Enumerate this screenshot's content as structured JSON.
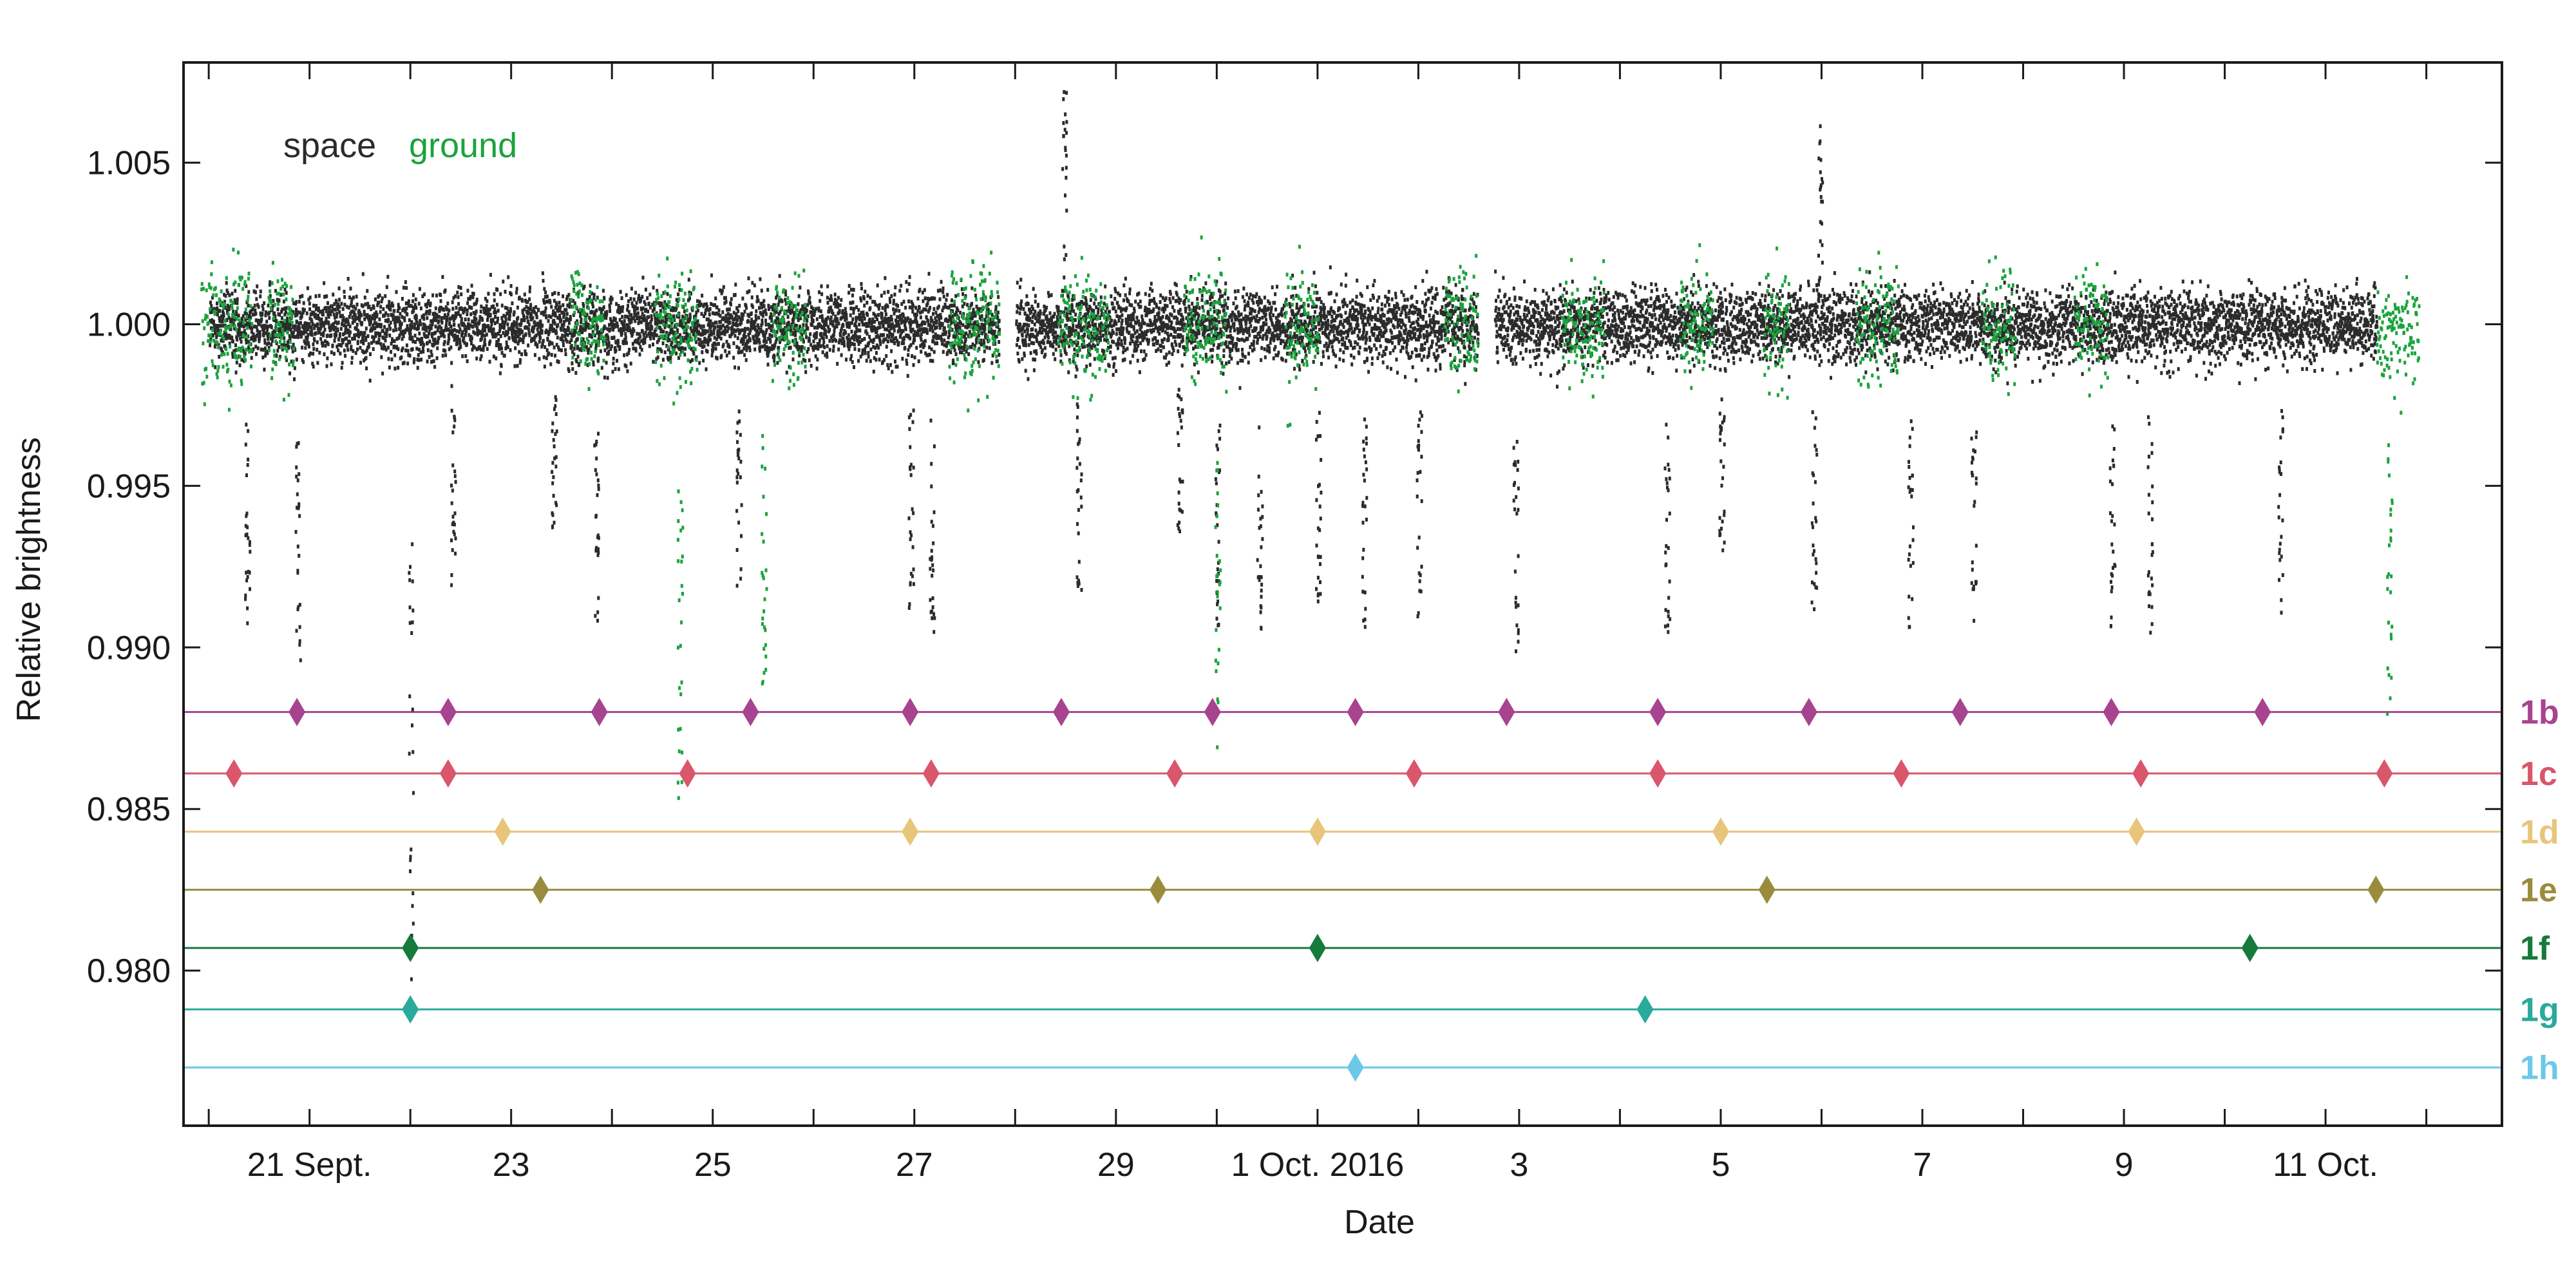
{
  "chart_data": {
    "type": "scatter",
    "xlabel": "Date",
    "ylabel": "Relative brightness",
    "x_unit": "date",
    "xlim": [
      "2016-09-19T18:00",
      "2016-10-12T18:00"
    ],
    "ylim": [
      0.9752,
      1.0081
    ],
    "x_ticks": [
      "2016-09-20",
      "2016-09-21",
      "2016-09-22",
      "2016-09-23",
      "2016-09-24",
      "2016-09-25",
      "2016-09-26",
      "2016-09-27",
      "2016-09-28",
      "2016-09-29",
      "2016-09-30",
      "2016-10-01",
      "2016-10-02",
      "2016-10-03",
      "2016-10-04",
      "2016-10-05",
      "2016-10-06",
      "2016-10-07",
      "2016-10-08",
      "2016-10-09",
      "2016-10-10",
      "2016-10-11",
      "2016-10-12"
    ],
    "x_tick_labels": [
      {
        "date": "2016-09-21",
        "label": "21 Sept."
      },
      {
        "date": "2016-09-23",
        "label": "23"
      },
      {
        "date": "2016-09-25",
        "label": "25"
      },
      {
        "date": "2016-09-27",
        "label": "27"
      },
      {
        "date": "2016-09-29",
        "label": "29"
      },
      {
        "date": "2016-10-01",
        "label": "1 Oct. 2016"
      },
      {
        "date": "2016-10-03",
        "label": "3"
      },
      {
        "date": "2016-10-05",
        "label": "5"
      },
      {
        "date": "2016-10-07",
        "label": "7"
      },
      {
        "date": "2016-10-09",
        "label": "9"
      },
      {
        "date": "2016-10-11",
        "label": "11 Oct."
      }
    ],
    "y_ticks": [
      0.98,
      0.985,
      0.99,
      0.995,
      1.0,
      1.005
    ],
    "y_tick_labels": [
      "0.980",
      "0.985",
      "0.990",
      "0.995",
      "1.000",
      "1.005"
    ],
    "legend": {
      "placement": "top-left"
    },
    "series": [
      {
        "name": "space",
        "color": "#2b2b2b",
        "baseline": 1.0,
        "scatter_sd": 0.0011,
        "segments": [
          [
            "2016-09-20T00:00",
            "2016-09-27T20:00"
          ],
          [
            "2016-09-28T00:00",
            "2016-10-02T14:00"
          ],
          [
            "2016-10-02T18:00",
            "2016-10-11T12:00"
          ]
        ],
        "transit_dips": [
          {
            "date": "2016-09-20T09:00",
            "depth": 0.9925
          },
          {
            "date": "2016-09-20T21:00",
            "depth": 0.9918
          },
          {
            "date": "2016-09-22T00:00",
            "depth": 0.984
          },
          {
            "date": "2016-09-22T10:00",
            "depth": 0.9932
          },
          {
            "date": "2016-09-23T10:00",
            "depth": 0.9948
          },
          {
            "date": "2016-09-23T20:00",
            "depth": 0.9928
          },
          {
            "date": "2016-09-25T06:00",
            "depth": 0.9935
          },
          {
            "date": "2016-09-26T23:00",
            "depth": 0.993
          },
          {
            "date": "2016-09-27T04:00",
            "depth": 0.9925
          },
          {
            "date": "2016-09-28T15:00",
            "depth": 0.9935
          },
          {
            "date": "2016-09-29T15:00",
            "depth": 0.995
          },
          {
            "date": "2016-09-30T00:00",
            "depth": 0.9925
          },
          {
            "date": "2016-09-30T10:00",
            "depth": 0.9925
          },
          {
            "date": "2016-10-01T00:00",
            "depth": 0.9932
          },
          {
            "date": "2016-10-01T11:00",
            "depth": 0.9925
          },
          {
            "date": "2016-10-02T00:00",
            "depth": 0.9928
          },
          {
            "date": "2016-10-02T23:00",
            "depth": 0.992
          },
          {
            "date": "2016-10-04T11:00",
            "depth": 0.9925
          },
          {
            "date": "2016-10-05T00:00",
            "depth": 0.9945
          },
          {
            "date": "2016-10-05T22:00",
            "depth": 0.993
          },
          {
            "date": "2016-10-06T21:00",
            "depth": 0.9925
          },
          {
            "date": "2016-10-07T12:00",
            "depth": 0.9925
          },
          {
            "date": "2016-10-08T21:00",
            "depth": 0.9925
          },
          {
            "date": "2016-10-09T06:00",
            "depth": 0.9925
          },
          {
            "date": "2016-10-10T13:00",
            "depth": 0.993
          }
        ],
        "flares": [
          {
            "date": "2016-09-28T11:00",
            "peak": 1.0075
          },
          {
            "date": "2016-10-05T23:00",
            "peak": 1.007
          }
        ]
      },
      {
        "name": "ground",
        "color": "#1aa33d",
        "baseline": 1.0,
        "scatter_sd": 0.0018,
        "segments": [
          [
            "2016-09-19T22:00",
            "2016-09-20T10:00"
          ],
          [
            "2016-09-20T14:00",
            "2016-09-20T20:00"
          ],
          [
            "2016-09-23T14:00",
            "2016-09-23T22:00"
          ],
          [
            "2016-09-24T10:00",
            "2016-09-24T20:00"
          ],
          [
            "2016-09-25T14:00",
            "2016-09-25T22:00"
          ],
          [
            "2016-09-27T08:00",
            "2016-09-27T20:00"
          ],
          [
            "2016-09-28T10:00",
            "2016-09-28T22:00"
          ],
          [
            "2016-09-29T16:00",
            "2016-09-30T02:00"
          ],
          [
            "2016-09-30T16:00",
            "2016-10-01T00:00"
          ],
          [
            "2016-10-02T06:00",
            "2016-10-02T14:00"
          ],
          [
            "2016-10-03T10:00",
            "2016-10-03T20:00"
          ],
          [
            "2016-10-04T14:00",
            "2016-10-04T22:00"
          ],
          [
            "2016-10-05T10:00",
            "2016-10-05T16:00"
          ],
          [
            "2016-10-06T08:00",
            "2016-10-06T18:00"
          ],
          [
            "2016-10-07T14:00",
            "2016-10-07T22:00"
          ],
          [
            "2016-10-08T12:00",
            "2016-10-08T20:00"
          ],
          [
            "2016-10-11T12:00",
            "2016-10-11T22:00"
          ]
        ],
        "transit_dips": [
          {
            "date": "2016-09-24T16:00",
            "depth": 0.9885
          },
          {
            "date": "2016-09-25T12:00",
            "depth": 0.991
          },
          {
            "date": "2016-09-30T00:00",
            "depth": 0.9895
          },
          {
            "date": "2016-10-11T15:00",
            "depth": 0.9905
          }
        ]
      }
    ],
    "planets": [
      {
        "name": "1b",
        "color": "#a8438f",
        "y": 0.988,
        "transits": [
          "2016-09-20T21:00",
          "2016-09-22T09:00",
          "2016-09-23T21:00",
          "2016-09-25T09:00",
          "2016-09-26T23:00",
          "2016-09-28T11:00",
          "2016-09-29T23:00",
          "2016-10-01T09:00",
          "2016-10-02T21:00",
          "2016-10-04T09:00",
          "2016-10-05T21:00",
          "2016-10-07T09:00",
          "2016-10-08T21:00",
          "2016-10-10T09:00"
        ]
      },
      {
        "name": "1c",
        "color": "#d9566b",
        "y": 0.9861,
        "transits": [
          "2016-09-20T06:00",
          "2016-09-22T09:00",
          "2016-09-24T18:00",
          "2016-09-27T04:00",
          "2016-09-29T14:00",
          "2016-10-01T23:00",
          "2016-10-04T09:00",
          "2016-10-06T19:00",
          "2016-10-09T04:00",
          "2016-10-11T14:00"
        ]
      },
      {
        "name": "1d",
        "color": "#e8c57a",
        "y": 0.9843,
        "transits": [
          "2016-09-22T22:00",
          "2016-09-26T23:00",
          "2016-10-01T00:00",
          "2016-10-05T00:00",
          "2016-10-09T03:00"
        ]
      },
      {
        "name": "1e",
        "color": "#9a8c3c",
        "y": 0.9825,
        "transits": [
          "2016-09-23T07:00",
          "2016-09-29T10:00",
          "2016-10-05T11:00",
          "2016-10-11T12:00"
        ]
      },
      {
        "name": "1f",
        "color": "#157a3a",
        "y": 0.9807,
        "transits": [
          "2016-09-22T00:00",
          "2016-10-01T00:00",
          "2016-10-10T06:00"
        ]
      },
      {
        "name": "1g",
        "color": "#2aaa9a",
        "y": 0.9788,
        "transits": [
          "2016-09-22T00:00",
          "2016-10-04T06:00"
        ]
      },
      {
        "name": "1h",
        "color": "#6cc8e8",
        "y": 0.977,
        "transits": [
          "2016-10-01T09:00"
        ]
      }
    ]
  }
}
